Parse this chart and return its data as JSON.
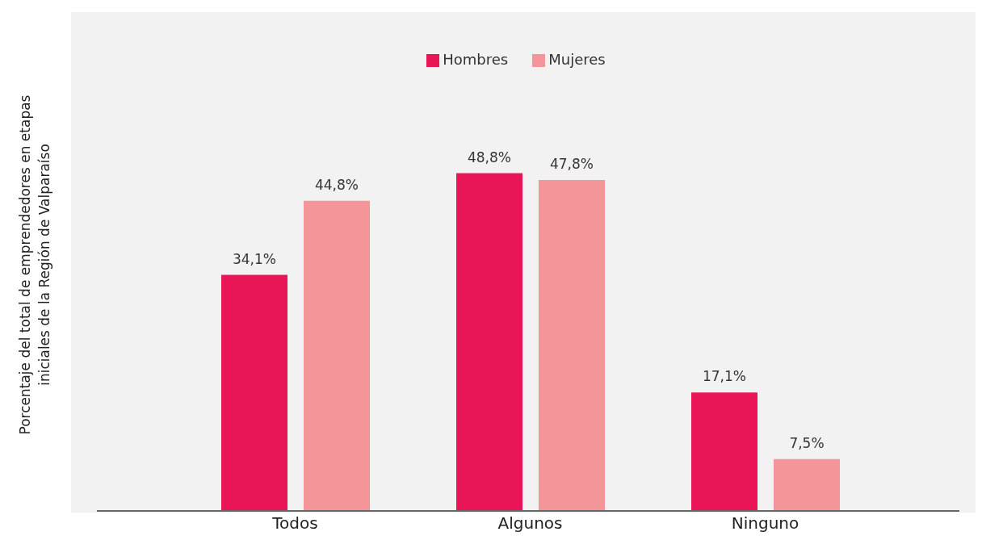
{
  "chart_data": {
    "type": "bar",
    "ylabel": "Porcentaje del total de emprendedores en etapas\niniciales de la Región de Valparaíso",
    "categories": [
      "Todos",
      "Algunos",
      "Ninguno"
    ],
    "series": [
      {
        "name": "Hombres",
        "color": "#ea1556",
        "values": [
          34.1,
          48.8,
          17.1
        ],
        "value_labels": [
          "34,1%",
          "48,8%",
          "17,1%"
        ]
      },
      {
        "name": "Mujeres",
        "color": "#f4959a",
        "values": [
          44.8,
          47.8,
          7.5
        ],
        "value_labels": [
          "44,8%",
          "47,8%",
          "7,5%"
        ]
      }
    ],
    "legend": "top",
    "grid": false
  }
}
